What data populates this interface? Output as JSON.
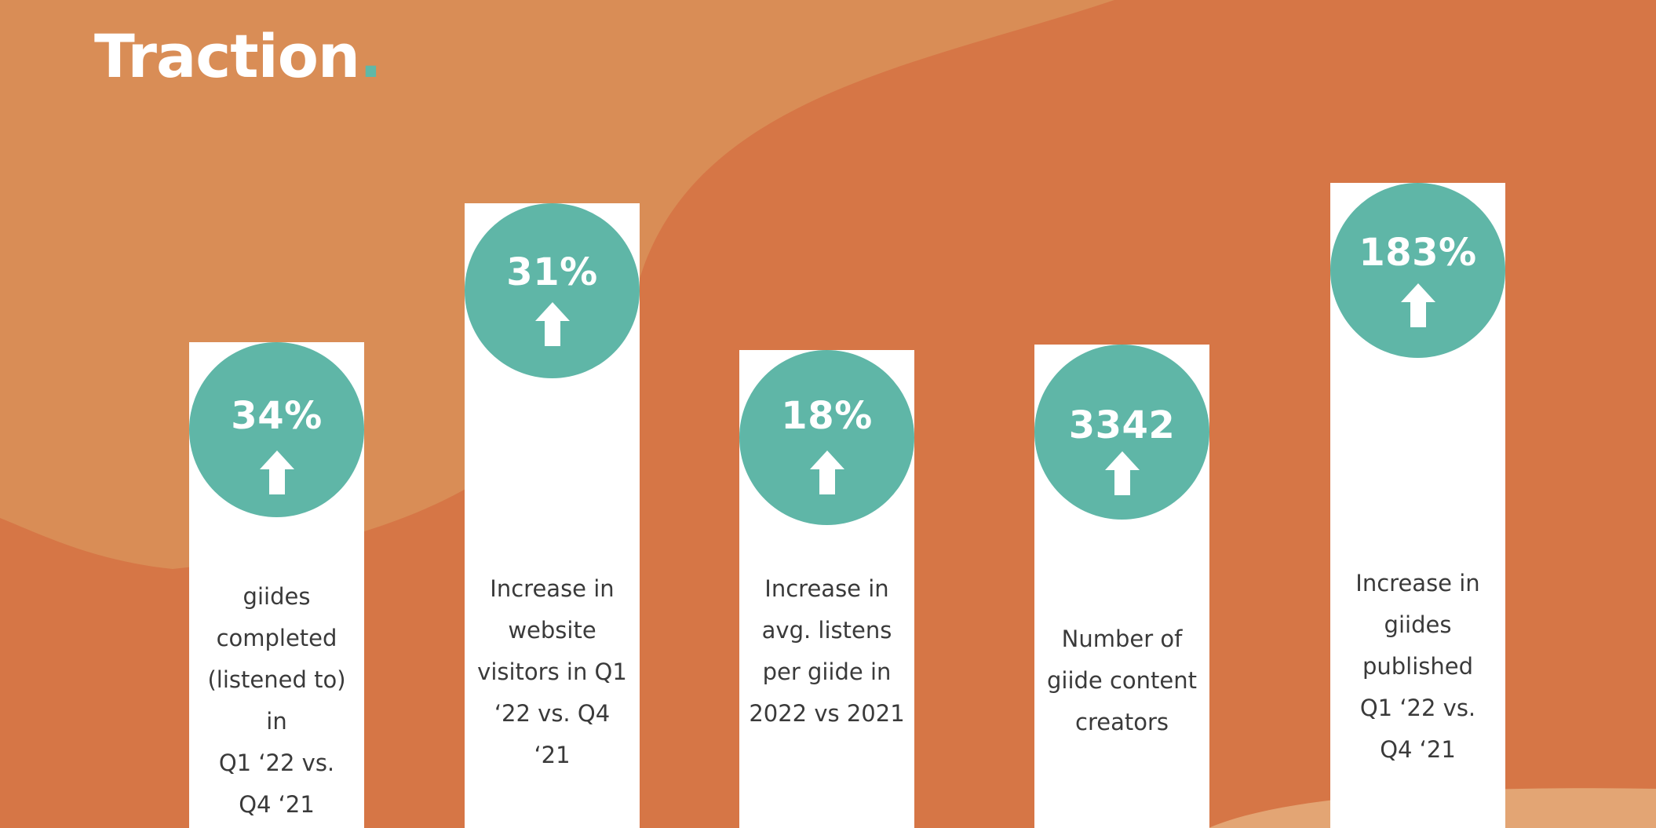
{
  "slide": {
    "title": "Traction",
    "title_dot": ".",
    "colors": {
      "background": "#d67646",
      "blob_light": "#d98d56",
      "accent_teal": "#5fb6a7",
      "pillar": "#ffffff",
      "text": "#3a3a3a"
    },
    "stats": [
      {
        "value": "34%",
        "icon": "up-arrow-icon",
        "lines": [
          "giides",
          "completed",
          "(listened to) in",
          "Q1 ‘22 vs.",
          "Q4 ‘21"
        ]
      },
      {
        "value": "31%",
        "icon": "up-arrow-icon",
        "lines": [
          "Increase in",
          "website",
          "visitors in Q1",
          "‘22  vs. Q4",
          "‘21"
        ]
      },
      {
        "value": "18%",
        "icon": "up-arrow-icon",
        "lines": [
          "Increase in",
          "avg. listens",
          "per giide in",
          "2022 vs 2021"
        ]
      },
      {
        "value": "3342",
        "icon": "up-arrow-icon",
        "lines": [
          "Number of",
          "giide content",
          "creators"
        ]
      },
      {
        "value": "183%",
        "icon": "up-arrow-icon",
        "lines": [
          "Increase in",
          "giides",
          "published",
          "Q1 ‘22  vs.",
          "Q4 ‘21"
        ]
      }
    ]
  }
}
